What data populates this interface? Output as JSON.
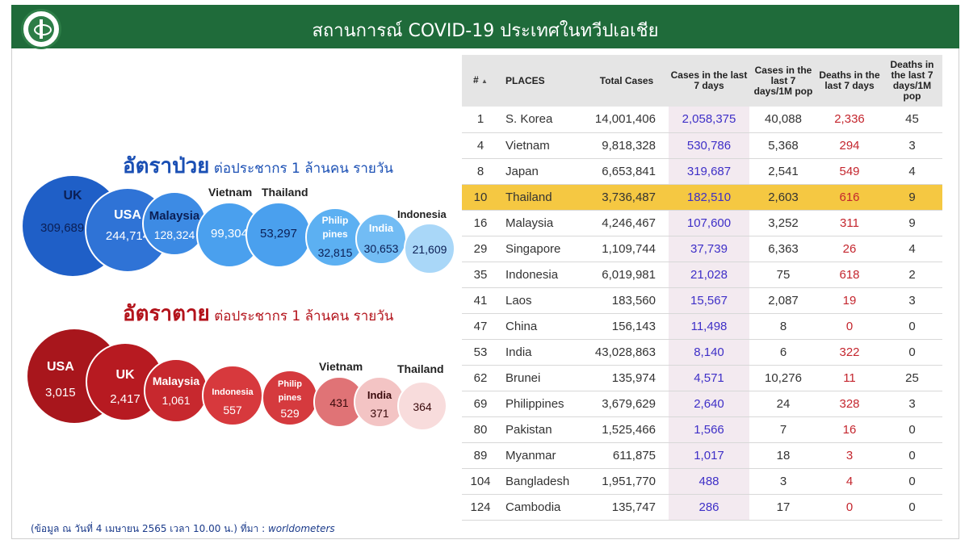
{
  "header": {
    "title": "สถานการณ์ COVID-19  ประเทศในทวีปเอเชีย"
  },
  "incidence": {
    "title_big": "อัตราป่วย",
    "title_small": " ต่อประชากร 1 ล้านคน รายวัน",
    "bubbles": [
      {
        "name": "UK",
        "value": "309,689"
      },
      {
        "name": "USA",
        "value": "244,714"
      },
      {
        "name": "Malaysia",
        "value": "128,324"
      },
      {
        "name": "Vietnam",
        "value": "99,304"
      },
      {
        "name": "Thailand",
        "value": "53,297"
      },
      {
        "name": "Philip",
        "name2": "pines",
        "value": "32,815"
      },
      {
        "name": "India",
        "value": "30,653"
      },
      {
        "name": "Indonesia",
        "value": "21,609"
      }
    ]
  },
  "mortality": {
    "title_big": "อัตราตาย",
    "title_small": " ต่อประชากร 1 ล้านคน รายวัน",
    "bubbles": [
      {
        "name": "USA",
        "value": "3,015"
      },
      {
        "name": "UK",
        "value": "2,417"
      },
      {
        "name": "Malaysia",
        "value": "1,061"
      },
      {
        "name": "Indonesia",
        "value": "557"
      },
      {
        "name": "Philip",
        "name2": "pines",
        "value": "529"
      },
      {
        "name": "Vietnam",
        "value": "431"
      },
      {
        "name": "India",
        "value": "371"
      },
      {
        "name": "Thailand",
        "value": "364"
      }
    ]
  },
  "footnote": {
    "text": "(ข้อมูล ณ วันที่ 4 เมษายน 2565 เวลา 10.00 น.) ที่มา : ",
    "source": "worldometers"
  },
  "table": {
    "headers": [
      "#",
      "PLACES",
      "Total Cases",
      "Cases in the last 7 days",
      "Cases in the last 7 days/1M pop",
      "Deaths in the last 7 days",
      "Deaths in the last 7 days/1M pop"
    ],
    "sort_icon": "▲",
    "rows": [
      [
        "1",
        "S. Korea",
        "14,001,406",
        "2,058,375",
        "40,088",
        "2,336",
        "45"
      ],
      [
        "4",
        "Vietnam",
        "9,818,328",
        "530,786",
        "5,368",
        "294",
        "3"
      ],
      [
        "8",
        "Japan",
        "6,653,841",
        "319,687",
        "2,541",
        "549",
        "4"
      ],
      [
        "10",
        "Thailand",
        "3,736,487",
        "182,510",
        "2,603",
        "616",
        "9"
      ],
      [
        "16",
        "Malaysia",
        "4,246,467",
        "107,600",
        "3,252",
        "311",
        "9"
      ],
      [
        "29",
        "Singapore",
        "1,109,744",
        "37,739",
        "6,363",
        "26",
        "4"
      ],
      [
        "35",
        "Indonesia",
        "6,019,981",
        "21,028",
        "75",
        "618",
        "2"
      ],
      [
        "41",
        "Laos",
        "183,560",
        "15,567",
        "2,087",
        "19",
        "3"
      ],
      [
        "47",
        "China",
        "156,143",
        "11,498",
        "8",
        "0",
        "0"
      ],
      [
        "53",
        "India",
        "43,028,863",
        "8,140",
        "6",
        "322",
        "0"
      ],
      [
        "62",
        "Brunei",
        "135,974",
        "4,571",
        "10,276",
        "11",
        "25"
      ],
      [
        "69",
        "Philippines",
        "3,679,629",
        "2,640",
        "24",
        "328",
        "3"
      ],
      [
        "80",
        "Pakistan",
        "1,525,466",
        "1,566",
        "7",
        "16",
        "0"
      ],
      [
        "89",
        "Myanmar",
        "611,875",
        "1,017",
        "18",
        "3",
        "0"
      ],
      [
        "104",
        "Bangladesh",
        "1,951,770",
        "488",
        "3",
        "4",
        "0"
      ],
      [
        "124",
        "Cambodia",
        "135,747",
        "286",
        "17",
        "0",
        "0"
      ]
    ],
    "highlight_row": 3
  }
}
